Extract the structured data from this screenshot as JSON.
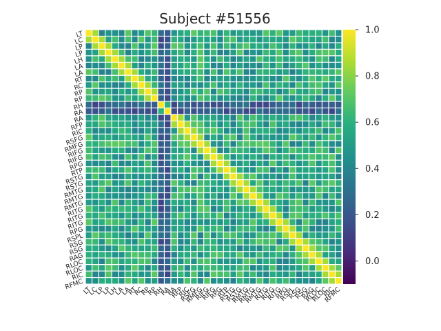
{
  "chart_data": {
    "type": "heatmap",
    "title": "Subject #51556",
    "row_labels": [
      "LT",
      "LC",
      "LP",
      "LP",
      "LH",
      "LA",
      "LA",
      "RT",
      "RC",
      "RP",
      "RP",
      "RH",
      "RA",
      "RA",
      "RFP",
      "RIC",
      "RSFG",
      "RMFG",
      "RIFG",
      "RIFG",
      "RPG",
      "RTP",
      "RSTG",
      "RSTG",
      "RMTG",
      "RMTG",
      "RMTG",
      "RITG",
      "RITG",
      "RITG",
      "RPG",
      "RSPL",
      "RSG",
      "RSG",
      "RAG",
      "RLOC",
      "RLOC",
      "RIC",
      "RFMC"
    ],
    "col_labels": [
      "LT",
      "LC",
      "LP",
      "LP",
      "LH",
      "LA",
      "LA",
      "RT",
      "RC",
      "RP",
      "RP",
      "RH",
      "RA",
      "RA",
      "RFP",
      "RIC",
      "RSFG",
      "RMFG",
      "RIFG",
      "RIFG",
      "RPG",
      "RTP",
      "RSTG",
      "RSTG",
      "RMTG",
      "RMTG",
      "RMTG",
      "RITG",
      "RITG",
      "RITG",
      "RPG",
      "RSPL",
      "RSG",
      "RSG",
      "RAG",
      "RLOC",
      "RLOC",
      "RIC",
      "RFMC"
    ],
    "colorbar": {
      "colormap": "viridis",
      "vmin": -0.1,
      "vmax": 1.0,
      "ticks": [
        "0.0",
        "0.2",
        "0.4",
        "0.6",
        "0.8",
        "1.0"
      ]
    },
    "diagonal_value": 1.0,
    "typical_off_diagonal": 0.55,
    "low_rows_cols": [
      "RH",
      "RA"
    ],
    "low_value": 0.0,
    "grid": true
  }
}
